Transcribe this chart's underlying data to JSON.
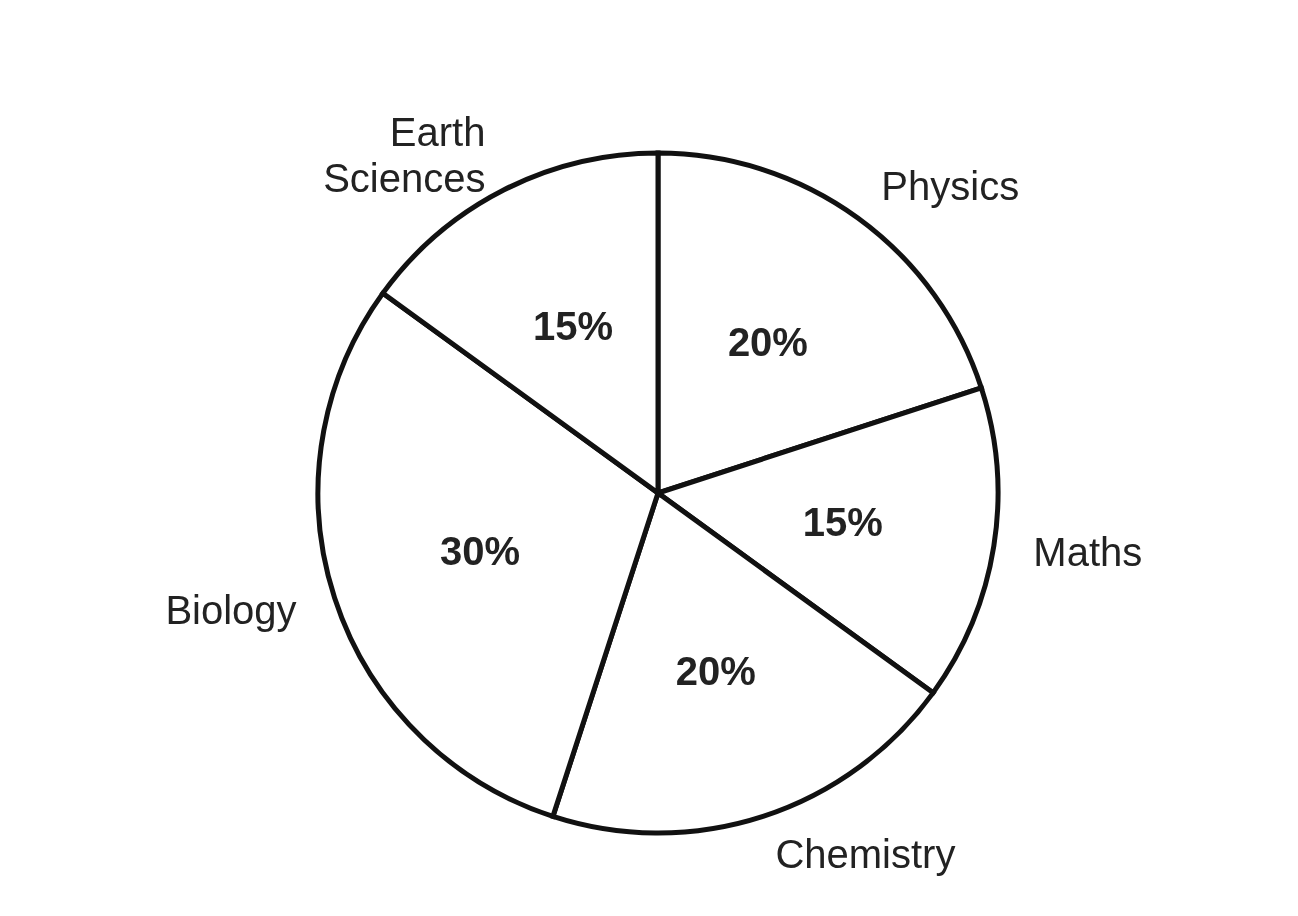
{
  "chart_data": {
    "type": "pie",
    "categories": [
      "Physics",
      "Maths",
      "Chemistry",
      "Biology",
      "Earth Sciences"
    ],
    "values": [
      20,
      15,
      20,
      30,
      15
    ],
    "colors": [
      "#ffffff",
      "#ffffff",
      "#ffffff",
      "#ffffff",
      "#ffffff"
    ],
    "value_labels": [
      "20%",
      "15%",
      "20%",
      "30%",
      "15%"
    ]
  }
}
